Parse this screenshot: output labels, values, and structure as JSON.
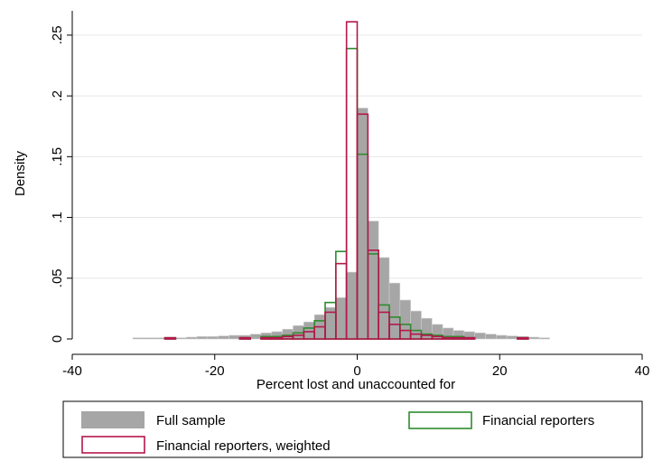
{
  "chart_data": {
    "type": "bar",
    "subtype": "histogram",
    "xlabel": "Percent lost and unaccounted for",
    "ylabel": "Density",
    "xlim": [
      -40,
      40
    ],
    "ylim": [
      0,
      0.27
    ],
    "xticks": [
      -40,
      -20,
      0,
      20,
      40
    ],
    "xtick_labels": [
      "-40",
      "-20",
      "0",
      "20",
      "40"
    ],
    "yticks": [
      0,
      0.05,
      0.1,
      0.15,
      0.2,
      0.25
    ],
    "ytick_labels": [
      "0",
      ".05",
      ".1",
      ".15",
      ".2",
      ".25"
    ],
    "grid": "horizontal",
    "legend_position": "bottom",
    "bin_width": 1.5,
    "series": [
      {
        "name": "Full sample",
        "style": "filled",
        "color": "#a6a6a6",
        "bins": [
          {
            "x0": -31.5,
            "x1": -30.0,
            "y": 0.001
          },
          {
            "x0": -30.0,
            "x1": -28.5,
            "y": 0.001
          },
          {
            "x0": -28.5,
            "x1": -27.0,
            "y": 0.001
          },
          {
            "x0": -27.0,
            "x1": -25.5,
            "y": 0.001
          },
          {
            "x0": -25.5,
            "x1": -24.0,
            "y": 0.001
          },
          {
            "x0": -24.0,
            "x1": -22.5,
            "y": 0.0015
          },
          {
            "x0": -22.5,
            "x1": -21.0,
            "y": 0.002
          },
          {
            "x0": -21.0,
            "x1": -19.5,
            "y": 0.002
          },
          {
            "x0": -19.5,
            "x1": -18.0,
            "y": 0.0025
          },
          {
            "x0": -18.0,
            "x1": -16.5,
            "y": 0.003
          },
          {
            "x0": -16.5,
            "x1": -15.0,
            "y": 0.003
          },
          {
            "x0": -15.0,
            "x1": -13.5,
            "y": 0.004
          },
          {
            "x0": -13.5,
            "x1": -12.0,
            "y": 0.005
          },
          {
            "x0": -12.0,
            "x1": -10.5,
            "y": 0.006
          },
          {
            "x0": -10.5,
            "x1": -9.0,
            "y": 0.008
          },
          {
            "x0": -9.0,
            "x1": -7.5,
            "y": 0.011
          },
          {
            "x0": -7.5,
            "x1": -6.0,
            "y": 0.014
          },
          {
            "x0": -6.0,
            "x1": -4.5,
            "y": 0.02
          },
          {
            "x0": -4.5,
            "x1": -3.0,
            "y": 0.026
          },
          {
            "x0": -3.0,
            "x1": -1.5,
            "y": 0.034
          },
          {
            "x0": -1.5,
            "x1": 0.0,
            "y": 0.055
          },
          {
            "x0": 0.0,
            "x1": 1.5,
            "y": 0.19
          },
          {
            "x0": 1.5,
            "x1": 3.0,
            "y": 0.097
          },
          {
            "x0": 3.0,
            "x1": 4.5,
            "y": 0.067
          },
          {
            "x0": 4.5,
            "x1": 6.0,
            "y": 0.046
          },
          {
            "x0": 6.0,
            "x1": 7.5,
            "y": 0.032
          },
          {
            "x0": 7.5,
            "x1": 9.0,
            "y": 0.023
          },
          {
            "x0": 9.0,
            "x1": 10.5,
            "y": 0.017
          },
          {
            "x0": 10.5,
            "x1": 12.0,
            "y": 0.012
          },
          {
            "x0": 12.0,
            "x1": 13.5,
            "y": 0.009
          },
          {
            "x0": 13.5,
            "x1": 15.0,
            "y": 0.007
          },
          {
            "x0": 15.0,
            "x1": 16.5,
            "y": 0.006
          },
          {
            "x0": 16.5,
            "x1": 18.0,
            "y": 0.005
          },
          {
            "x0": 18.0,
            "x1": 19.5,
            "y": 0.004
          },
          {
            "x0": 19.5,
            "x1": 21.0,
            "y": 0.003
          },
          {
            "x0": 21.0,
            "x1": 22.5,
            "y": 0.0025
          },
          {
            "x0": 22.5,
            "x1": 24.0,
            "y": 0.002
          },
          {
            "x0": 24.0,
            "x1": 25.5,
            "y": 0.0015
          },
          {
            "x0": 25.5,
            "x1": 27.0,
            "y": 0.001
          }
        ]
      },
      {
        "name": "Financial reporters",
        "style": "outline",
        "color": "#2e8b2e",
        "bins": [
          {
            "x0": -27.0,
            "x1": -25.5,
            "y": 0.001
          },
          {
            "x0": -16.5,
            "x1": -15.0,
            "y": 0.001
          },
          {
            "x0": -13.5,
            "x1": -12.0,
            "y": 0.002
          },
          {
            "x0": -12.0,
            "x1": -10.5,
            "y": 0.002
          },
          {
            "x0": -10.5,
            "x1": -9.0,
            "y": 0.003
          },
          {
            "x0": -9.0,
            "x1": -7.5,
            "y": 0.005
          },
          {
            "x0": -7.5,
            "x1": -6.0,
            "y": 0.009
          },
          {
            "x0": -6.0,
            "x1": -4.5,
            "y": 0.015
          },
          {
            "x0": -4.5,
            "x1": -3.0,
            "y": 0.03
          },
          {
            "x0": -3.0,
            "x1": -1.5,
            "y": 0.072
          },
          {
            "x0": -1.5,
            "x1": 0.0,
            "y": 0.239
          },
          {
            "x0": 0.0,
            "x1": 1.5,
            "y": 0.152
          },
          {
            "x0": 1.5,
            "x1": 3.0,
            "y": 0.07
          },
          {
            "x0": 3.0,
            "x1": 4.5,
            "y": 0.028
          },
          {
            "x0": 4.5,
            "x1": 6.0,
            "y": 0.018
          },
          {
            "x0": 6.0,
            "x1": 7.5,
            "y": 0.012
          },
          {
            "x0": 7.5,
            "x1": 9.0,
            "y": 0.007
          },
          {
            "x0": 9.0,
            "x1": 10.5,
            "y": 0.004
          },
          {
            "x0": 10.5,
            "x1": 12.0,
            "y": 0.003
          },
          {
            "x0": 12.0,
            "x1": 13.5,
            "y": 0.002
          },
          {
            "x0": 13.5,
            "x1": 15.0,
            "y": 0.002
          },
          {
            "x0": 15.0,
            "x1": 16.5,
            "y": 0.001
          },
          {
            "x0": 22.5,
            "x1": 24.0,
            "y": 0.001
          }
        ]
      },
      {
        "name": "Financial reporters, weighted",
        "style": "outline",
        "color": "#b5174b",
        "bins": [
          {
            "x0": -27.0,
            "x1": -25.5,
            "y": 0.001
          },
          {
            "x0": -16.5,
            "x1": -15.0,
            "y": 0.001
          },
          {
            "x0": -13.5,
            "x1": -12.0,
            "y": 0.001
          },
          {
            "x0": -12.0,
            "x1": -10.5,
            "y": 0.001
          },
          {
            "x0": -10.5,
            "x1": -9.0,
            "y": 0.002
          },
          {
            "x0": -9.0,
            "x1": -7.5,
            "y": 0.003
          },
          {
            "x0": -7.5,
            "x1": -6.0,
            "y": 0.006
          },
          {
            "x0": -6.0,
            "x1": -4.5,
            "y": 0.01
          },
          {
            "x0": -4.5,
            "x1": -3.0,
            "y": 0.022
          },
          {
            "x0": -3.0,
            "x1": -1.5,
            "y": 0.062
          },
          {
            "x0": -1.5,
            "x1": 0.0,
            "y": 0.261
          },
          {
            "x0": 0.0,
            "x1": 1.5,
            "y": 0.185
          },
          {
            "x0": 1.5,
            "x1": 3.0,
            "y": 0.073
          },
          {
            "x0": 3.0,
            "x1": 4.5,
            "y": 0.022
          },
          {
            "x0": 4.5,
            "x1": 6.0,
            "y": 0.012
          },
          {
            "x0": 6.0,
            "x1": 7.5,
            "y": 0.007
          },
          {
            "x0": 7.5,
            "x1": 9.0,
            "y": 0.004
          },
          {
            "x0": 9.0,
            "x1": 10.5,
            "y": 0.003
          },
          {
            "x0": 10.5,
            "x1": 12.0,
            "y": 0.002
          },
          {
            "x0": 12.0,
            "x1": 13.5,
            "y": 0.001
          },
          {
            "x0": 13.5,
            "x1": 15.0,
            "y": 0.001
          },
          {
            "x0": 15.0,
            "x1": 16.5,
            "y": 0.001
          },
          {
            "x0": 22.5,
            "x1": 24.0,
            "y": 0.001
          }
        ]
      }
    ],
    "legend": [
      {
        "label": "Full sample",
        "series": 0
      },
      {
        "label": "Financial reporters",
        "series": 1
      },
      {
        "label": "Financial reporters, weighted",
        "series": 2
      }
    ]
  }
}
